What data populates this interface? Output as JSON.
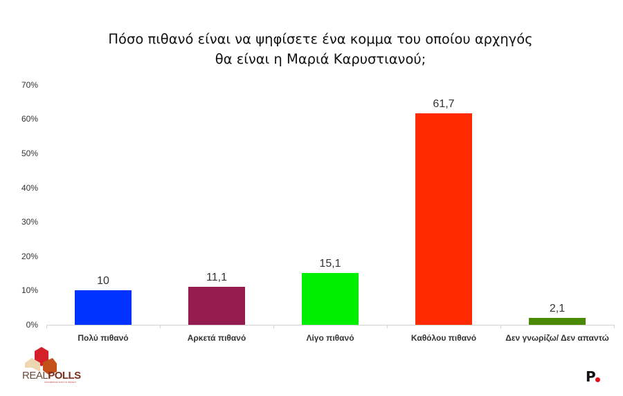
{
  "title": {
    "line1": "Πόσο πιθανό είναι να ψηφίσετε ένα κομμα του οποίου αρχηγός",
    "line2": "θα είναι η Μαριά Καρυστιανού;"
  },
  "y_axis": {
    "ticks": [
      "0%",
      "10%",
      "20%",
      "30%",
      "40%",
      "50%",
      "60%",
      "70%"
    ]
  },
  "bars": [
    {
      "category": "Πολύ πιθανό",
      "value_label": "10",
      "value": 10,
      "color": "#0033ff"
    },
    {
      "category": "Αρκετά πιθανό",
      "value_label": "11,1",
      "value": 11.1,
      "color": "#951b4e"
    },
    {
      "category": "Λίγο πιθανό",
      "value_label": "15,1",
      "value": 15.1,
      "color": "#00ee00"
    },
    {
      "category": "Καθόλου πιθανό",
      "value_label": "61,7",
      "value": 61.7,
      "color": "#ff2a00"
    },
    {
      "category": "Δεν γνωρίζω/ Δεν απαντώ",
      "value_label": "2,1",
      "value": 2.1,
      "color": "#4a8a00"
    }
  ],
  "logos": {
    "left_brand_light": "REAL",
    "left_brand_bold": "POLLS",
    "left_brand_tagline": "CONVERTING DATA TO INSIGHT",
    "right_brand": "P"
  },
  "chart_data": {
    "type": "bar",
    "title": "Πόσο πιθανό είναι να ψηφίσετε ένα κομμα του οποίου αρχηγός θα είναι η Μαριά Καρυστιανού;",
    "categories": [
      "Πολύ πιθανό",
      "Αρκετά πιθανό",
      "Λίγο πιθανό",
      "Καθόλου πιθανό",
      "Δεν γνωρίζω/ Δεν απαντώ"
    ],
    "values": [
      10,
      11.1,
      15.1,
      61.7,
      2.1
    ],
    "colors": [
      "#0033ff",
      "#951b4e",
      "#00ee00",
      "#ff2a00",
      "#4a8a00"
    ],
    "xlabel": "",
    "ylabel": "",
    "ylim": [
      0,
      70
    ],
    "ytick_labels": [
      "0%",
      "10%",
      "20%",
      "30%",
      "40%",
      "50%",
      "60%",
      "70%"
    ],
    "grid": false,
    "legend": "none",
    "data_labels": [
      "10",
      "11,1",
      "15,1",
      "61,7",
      "2,1"
    ]
  }
}
